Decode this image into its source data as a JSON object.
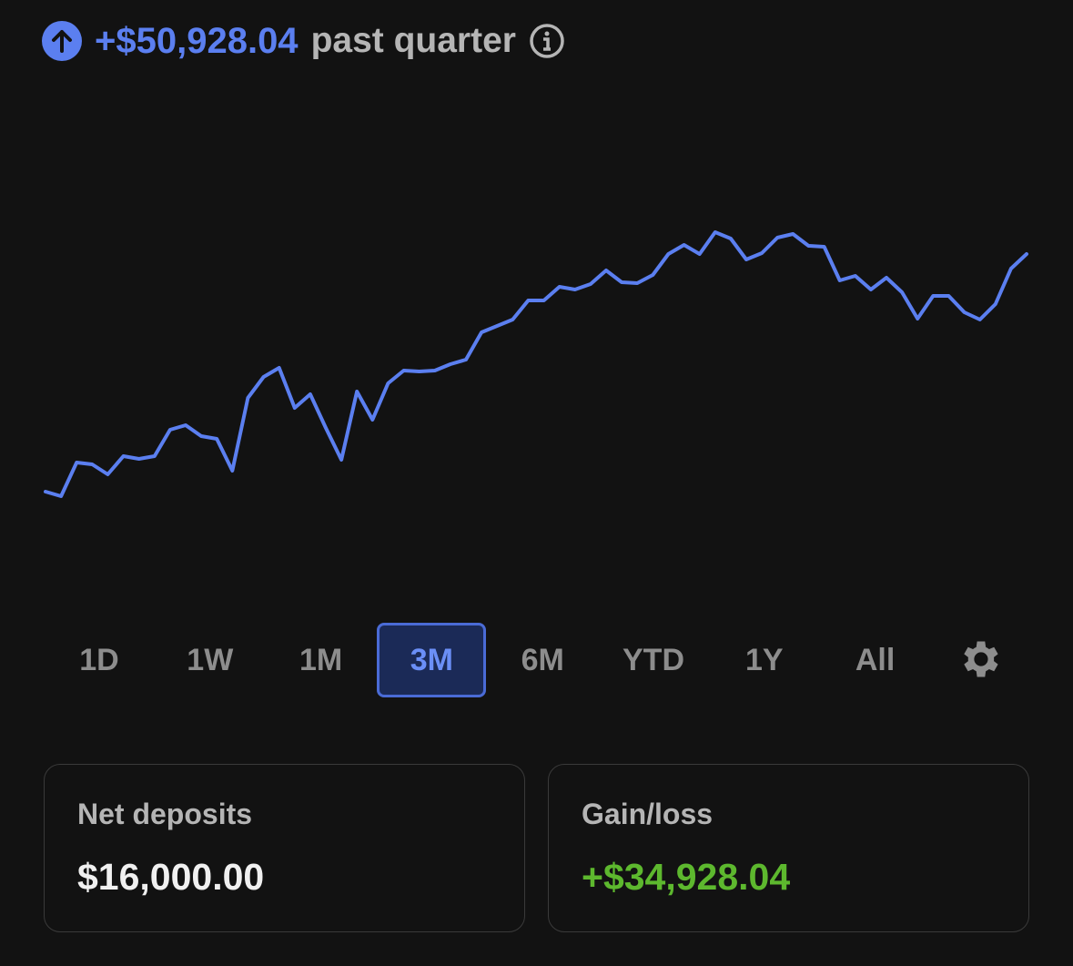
{
  "header": {
    "amount": "+$50,928.04",
    "label": "past quarter"
  },
  "chart_data": {
    "type": "line",
    "color": "#5b7ff0",
    "categories": [
      null,
      null,
      null,
      null,
      null,
      null,
      null,
      null,
      null,
      null,
      null,
      null,
      null,
      null,
      null,
      null,
      null,
      null,
      null,
      null,
      null,
      null,
      null,
      null,
      null,
      null,
      null,
      null,
      null,
      null,
      null,
      null,
      null,
      null,
      null,
      null,
      null,
      null,
      null,
      null,
      null,
      null,
      null,
      null,
      null,
      null,
      null,
      null,
      null,
      null,
      null,
      null,
      null,
      null,
      null,
      null,
      null,
      null,
      null,
      null,
      null,
      null,
      null,
      null
    ],
    "values": [
      60,
      55,
      92,
      90,
      79,
      99,
      96,
      99,
      128,
      133,
      121,
      118,
      83,
      163,
      186,
      196,
      152,
      167,
      130,
      95,
      170,
      139,
      179,
      193,
      192,
      193,
      200,
      205,
      235,
      242,
      249,
      270,
      270,
      285,
      282,
      288,
      303,
      290,
      289,
      298,
      321,
      331,
      321,
      345,
      338,
      315,
      322,
      339,
      343,
      330,
      329,
      292,
      297,
      282,
      295,
      279,
      250,
      275,
      275,
      257,
      249,
      266,
      305,
      321
    ],
    "ylim": [
      0,
      600
    ]
  },
  "ranges": [
    "1D",
    "1W",
    "1M",
    "3M",
    "6M",
    "YTD",
    "1Y",
    "All"
  ],
  "selected_range": 3,
  "cards": [
    {
      "label": "Net deposits",
      "value": "$16,000.00",
      "color": "#f0f0f0"
    },
    {
      "label": "Gain/loss",
      "value": "+$34,928.04",
      "color": "#5db82e"
    }
  ]
}
